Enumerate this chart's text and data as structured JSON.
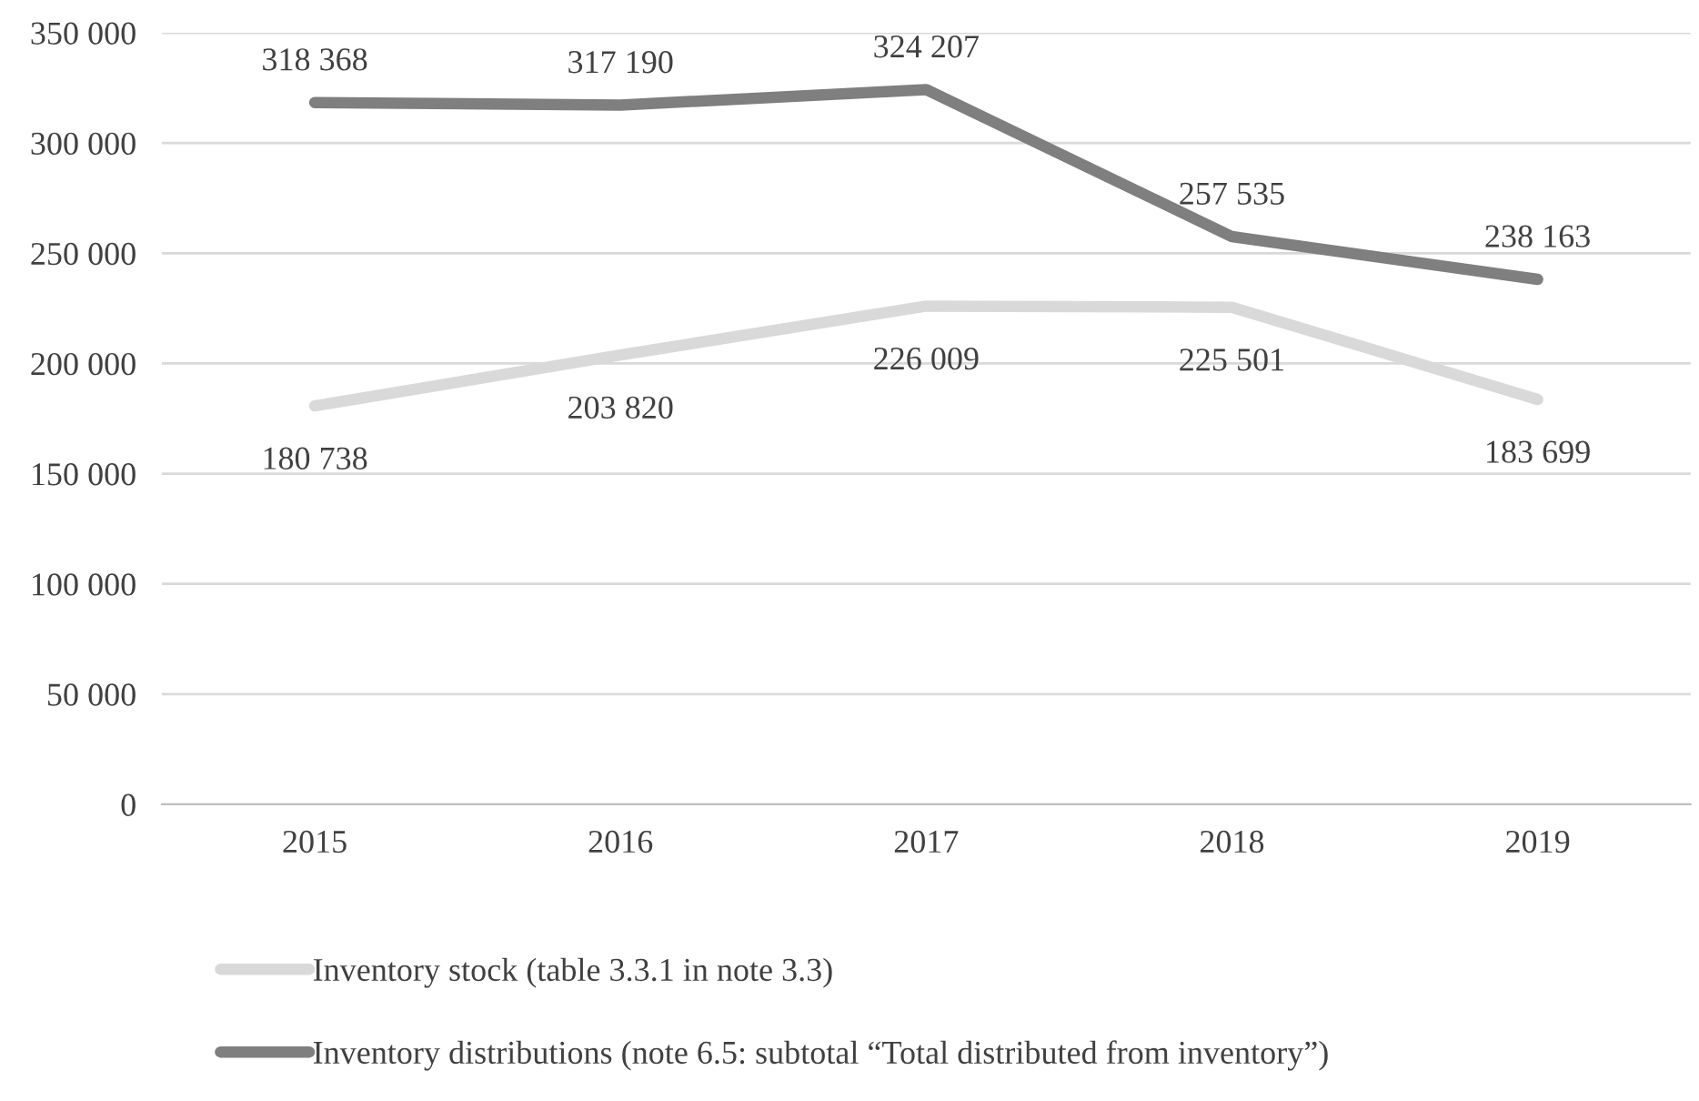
{
  "chart_data": {
    "type": "line",
    "categories": [
      "2015",
      "2016",
      "2017",
      "2018",
      "2019"
    ],
    "series": [
      {
        "name": "Inventory stock (table 3.3.1 in note 3.3)",
        "color": "#d9d9d9",
        "values": [
          180738,
          203820,
          226009,
          225501,
          183699
        ],
        "value_labels": [
          "180 738",
          "203 820",
          "226 009",
          "225 501",
          "183 699"
        ]
      },
      {
        "name": "Inventory distributions (note 6.5: subtotal “Total distributed from inventory”)",
        "color": "#7f7f7f",
        "values": [
          318368,
          317190,
          324207,
          257535,
          238163
        ],
        "value_labels": [
          "318 368",
          "317 190",
          "324 207",
          "257 535",
          "238 163"
        ]
      }
    ],
    "ylim": [
      0,
      350000
    ],
    "yticks": [
      {
        "value": 0,
        "label": "0"
      },
      {
        "value": 50000,
        "label": "50 000"
      },
      {
        "value": 100000,
        "label": "100 000"
      },
      {
        "value": 150000,
        "label": "150 000"
      },
      {
        "value": 200000,
        "label": "200 000"
      },
      {
        "value": 250000,
        "label": "250 000"
      },
      {
        "value": 300000,
        "label": "300 000"
      },
      {
        "value": 350000,
        "label": "350 000"
      }
    ],
    "grid": "y",
    "legend": "bottom",
    "marker": "none",
    "line_style": "solid"
  }
}
